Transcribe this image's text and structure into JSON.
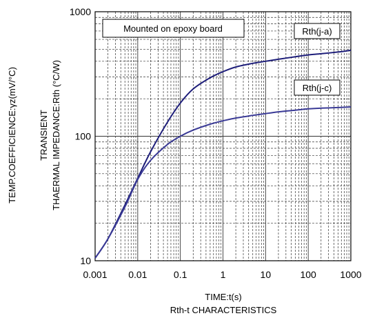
{
  "chart_data": {
    "type": "line",
    "title": "Rth-t CHARACTERISTICS",
    "xlabel": "TIME:t(s)",
    "ylabel_line1": "TRANSIENT",
    "ylabel_line2": "THAERMAL IMPEDANCE:Rth (°C/W)",
    "ylabel_outer": "TEMP.COEFFICIENCE:γz(mV/°C)",
    "xscale": "log",
    "yscale": "log",
    "xlim": [
      0.001,
      1000
    ],
    "ylim": [
      10,
      1000
    ],
    "xticks": [
      {
        "value": 0.001,
        "label": "0.001"
      },
      {
        "value": 0.01,
        "label": "0.01"
      },
      {
        "value": 0.1,
        "label": "0.1"
      },
      {
        "value": 1,
        "label": "1"
      },
      {
        "value": 10,
        "label": "10"
      },
      {
        "value": 100,
        "label": "100"
      },
      {
        "value": 1000,
        "label": "1000"
      }
    ],
    "yticks": [
      {
        "value": 10,
        "label": "10"
      },
      {
        "value": 100,
        "label": "100"
      },
      {
        "value": 1000,
        "label": "1000"
      }
    ],
    "grid": true,
    "annotation": "Mounted on epoxy board",
    "series": [
      {
        "name": "Rth(j-a)",
        "color": "#1e1e7a",
        "x": [
          0.001,
          0.002,
          0.005,
          0.01,
          0.02,
          0.05,
          0.1,
          0.2,
          0.5,
          1,
          2,
          5,
          10,
          20,
          50,
          100,
          200,
          500,
          1000
        ],
        "y": [
          10.5,
          15,
          28,
          46,
          75,
          130,
          185,
          240,
          295,
          330,
          360,
          385,
          400,
          415,
          435,
          450,
          460,
          475,
          490
        ]
      },
      {
        "name": "Rth(j-c)",
        "color": "#3a3a96",
        "x": [
          0.001,
          0.002,
          0.005,
          0.01,
          0.02,
          0.05,
          0.1,
          0.2,
          0.5,
          1,
          2,
          5,
          10,
          20,
          50,
          100,
          200,
          500,
          1000
        ],
        "y": [
          10.5,
          15,
          27,
          45,
          64,
          86,
          100,
          112,
          125,
          133,
          140,
          147,
          152,
          157,
          162,
          166,
          168,
          170,
          172
        ]
      }
    ]
  }
}
